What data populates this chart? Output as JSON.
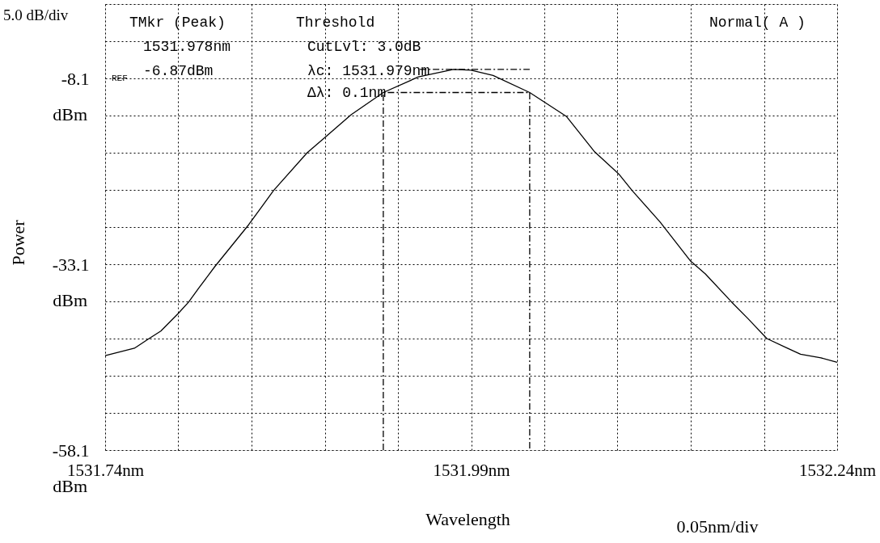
{
  "chart_data": {
    "type": "line",
    "xlabel": "Wavelength",
    "ylabel": "Power",
    "xlim": [
      1531.74,
      1532.24
    ],
    "ylim": [
      -58.1,
      1.9
    ],
    "xticks": [
      {
        "value": 1531.74,
        "label": "1531.74nm"
      },
      {
        "value": 1531.79,
        "label": null
      },
      {
        "value": 1531.84,
        "label": null
      },
      {
        "value": 1531.89,
        "label": null
      },
      {
        "value": 1531.94,
        "label": null
      },
      {
        "value": 1531.99,
        "label": "1531.99nm"
      },
      {
        "value": 1532.04,
        "label": null
      },
      {
        "value": 1532.09,
        "label": null
      },
      {
        "value": 1532.14,
        "label": null
      },
      {
        "value": 1532.19,
        "label": null
      },
      {
        "value": 1532.24,
        "label": "1532.24nm"
      }
    ],
    "yticks": [
      {
        "value": 1.9,
        "label": null
      },
      {
        "value": -3.1,
        "label": null
      },
      -8.1,
      {
        "value": -13.1,
        "label": null
      },
      {
        "value": -18.1,
        "label": null
      },
      {
        "value": -23.1,
        "label": null
      },
      {
        "value": -28.1,
        "label": null
      },
      -33.1,
      {
        "value": -38.1,
        "label": null
      },
      {
        "value": -43.1,
        "label": null
      },
      {
        "value": -48.1,
        "label": null
      },
      {
        "value": -53.1,
        "label": null
      },
      -58.1
    ],
    "grid": true,
    "series": [
      {
        "color": "#000000",
        "line_style": "solid",
        "x": [
          1531.74,
          1531.76,
          1531.77,
          1531.778,
          1531.79,
          1531.797,
          1531.804,
          1531.815,
          1531.838,
          1531.855,
          1531.878,
          1531.891,
          1531.908,
          1531.93,
          1531.954,
          1531.978,
          1531.99,
          1532.005,
          1532.03,
          1532.055,
          1532.074,
          1532.091,
          1532.1,
          1532.119,
          1532.14,
          1532.15,
          1532.168,
          1532.179,
          1532.192,
          1532.206,
          1532.215,
          1532.229,
          1532.24
        ],
        "values": [
          -45.4,
          -44.4,
          -43.1,
          -42.1,
          -39.7,
          -38.2,
          -36.3,
          -33.4,
          -27.8,
          -23.2,
          -18.1,
          -15.9,
          -13.0,
          -10.0,
          -7.9,
          -6.9,
          -7.0,
          -7.7,
          -10.0,
          -13.2,
          -17.9,
          -21.0,
          -23.2,
          -27.4,
          -32.7,
          -34.4,
          -38.2,
          -40.4,
          -43.1,
          -44.4,
          -45.2,
          -45.7,
          -46.3
        ]
      },
      {
        "color": "#000000",
        "line_style": "dashed",
        "x": [
          1531.93,
          1531.93,
          1532.03,
          1532.03
        ],
        "values": [
          -58.1,
          -10.0,
          -10.0,
          -58.1
        ]
      },
      {
        "color": "#000000",
        "line_style": "dashed",
        "x": [
          1531.955,
          1532.03
        ],
        "values": [
          -6.9,
          -6.9
        ]
      }
    ],
    "annotations": [
      "5.0 dB/div",
      "TMkr (Peak)",
      "1531.978nm",
      "-6.87dBm",
      "REF",
      "Threshold",
      "CutLvl:   3.0dB",
      "λc: 1531.979nm",
      "Δλ:    0.1nm",
      "Normal( A )",
      "0.05nm/div",
      "dBm",
      "dBm",
      "dBm"
    ]
  }
}
